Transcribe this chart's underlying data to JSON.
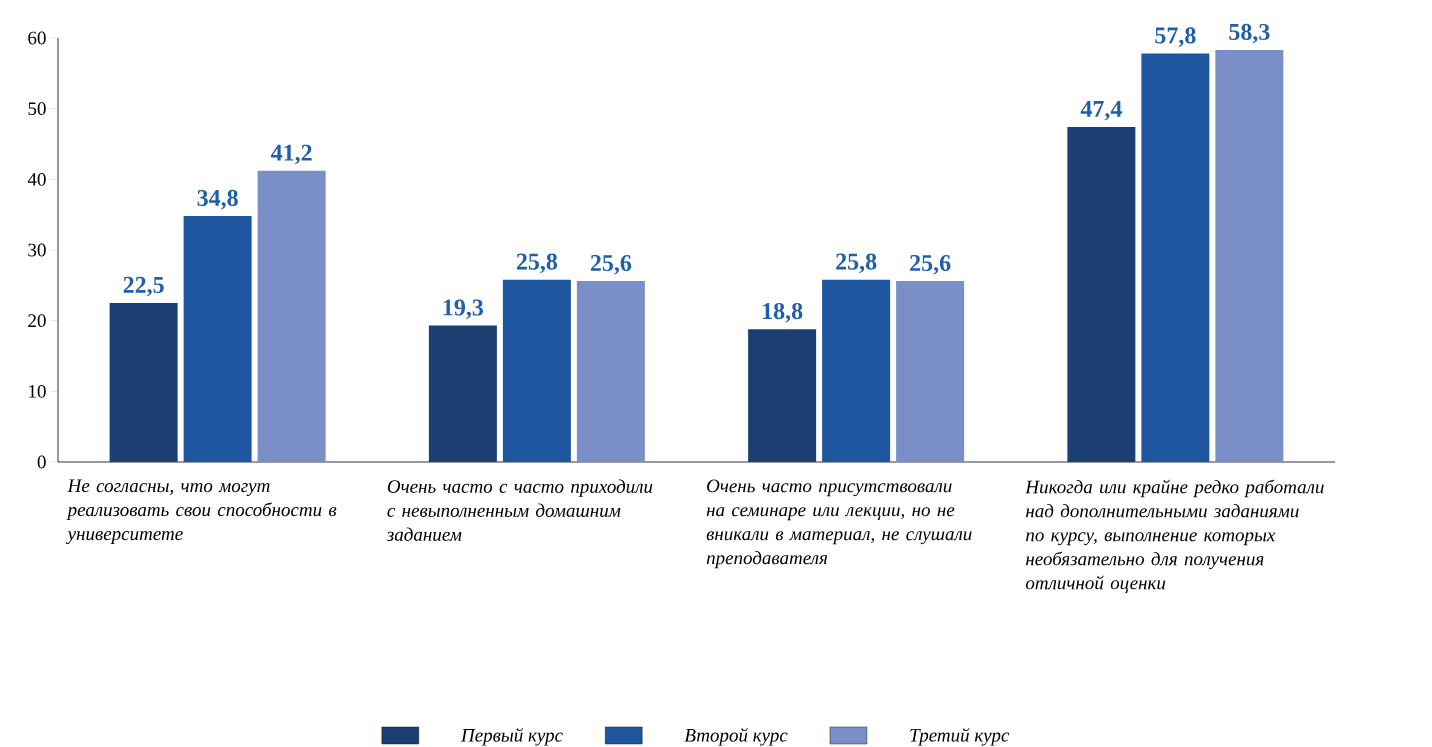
{
  "chart_data": {
    "type": "bar",
    "categories": [
      "Не согласны, что могут реализовать свои способности в университете",
      "Очень часто с часто приходили с невыполненным домашним заданием",
      "Очень часто присутствовали на семинаре или лекции, но не вникали в материал, не слушали преподавателя",
      "Никогда или крайне редко работали над дополнительными заданиями по курсу, выполнение которых необязательно для получения отличной оценки"
    ],
    "series": [
      {
        "name": "Первый курс",
        "color": "#1c3f73",
        "values": [
          22.5,
          19.3,
          18.8,
          47.4
        ],
        "value_labels": [
          "22,5",
          "19,3",
          "18,8",
          "47,4"
        ]
      },
      {
        "name": "Второй курс",
        "color": "#1f56a0",
        "values": [
          34.8,
          25.8,
          25.8,
          57.8
        ],
        "value_labels": [
          "34,8",
          "25,8",
          "25,8",
          "57,8"
        ]
      },
      {
        "name": "Третий курс",
        "color": "#7a8ec8",
        "values": [
          41.2,
          25.6,
          25.6,
          58.3
        ],
        "value_labels": [
          "41,2",
          "25,6",
          "25,6",
          "58,3"
        ]
      }
    ],
    "ylim": [
      0,
      60
    ],
    "yticks": [
      0,
      10,
      20,
      30,
      40,
      50,
      60
    ],
    "grid": false,
    "legend": "bottom"
  }
}
